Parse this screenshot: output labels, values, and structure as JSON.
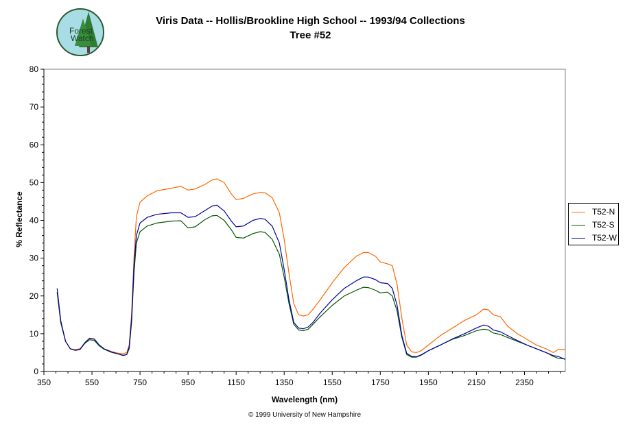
{
  "header": {
    "title_line1": "Viris Data -- Hollis/Brookline High School -- 1993/94 Collections",
    "title_line2": "Tree #52"
  },
  "logo": {
    "text_line1": "Forest",
    "text_line2": "Watch"
  },
  "footer": {
    "copyright": "© 1999 University of New Hampshire"
  },
  "chart_data": {
    "type": "line",
    "title": "Viris Data -- Hollis/Brookline High School -- 1993/94 Collections\nTree #52",
    "xlabel": "Wavelength (nm)",
    "ylabel": "% Reflectance",
    "xlim": [
      350,
      2520
    ],
    "ylim": [
      0,
      80
    ],
    "xticks": [
      350,
      550,
      750,
      950,
      1150,
      1350,
      1550,
      1750,
      1950,
      2150,
      2350
    ],
    "yticks": [
      0,
      10,
      20,
      30,
      40,
      50,
      60,
      70,
      80
    ],
    "grid": false,
    "legend_position": "right",
    "series": [
      {
        "name": "T52-N",
        "color": "#ff6600",
        "points": [
          [
            405,
            21
          ],
          [
            420,
            13
          ],
          [
            440,
            8
          ],
          [
            460,
            6
          ],
          [
            480,
            5.8
          ],
          [
            500,
            6
          ],
          [
            520,
            7.5
          ],
          [
            540,
            8.7
          ],
          [
            560,
            8.5
          ],
          [
            580,
            7
          ],
          [
            600,
            6
          ],
          [
            630,
            5.3
          ],
          [
            660,
            4.8
          ],
          [
            680,
            4.7
          ],
          [
            695,
            5
          ],
          [
            705,
            7
          ],
          [
            715,
            15
          ],
          [
            725,
            30
          ],
          [
            735,
            41
          ],
          [
            750,
            44.8
          ],
          [
            780,
            46.5
          ],
          [
            820,
            47.8
          ],
          [
            880,
            48.5
          ],
          [
            920,
            49
          ],
          [
            950,
            48
          ],
          [
            980,
            48.3
          ],
          [
            1020,
            49.5
          ],
          [
            1050,
            50.7
          ],
          [
            1070,
            51
          ],
          [
            1100,
            50
          ],
          [
            1130,
            47
          ],
          [
            1150,
            45.5
          ],
          [
            1180,
            45.8
          ],
          [
            1220,
            47
          ],
          [
            1250,
            47.4
          ],
          [
            1270,
            47.3
          ],
          [
            1300,
            46
          ],
          [
            1330,
            42
          ],
          [
            1350,
            35
          ],
          [
            1370,
            26
          ],
          [
            1390,
            18
          ],
          [
            1410,
            15
          ],
          [
            1430,
            14.7
          ],
          [
            1450,
            15
          ],
          [
            1470,
            16.5
          ],
          [
            1500,
            19
          ],
          [
            1550,
            23.5
          ],
          [
            1600,
            27.5
          ],
          [
            1650,
            30.5
          ],
          [
            1680,
            31.5
          ],
          [
            1700,
            31.5
          ],
          [
            1730,
            30.5
          ],
          [
            1750,
            29
          ],
          [
            1780,
            28.5
          ],
          [
            1800,
            28
          ],
          [
            1820,
            23
          ],
          [
            1840,
            14
          ],
          [
            1860,
            7
          ],
          [
            1880,
            5.2
          ],
          [
            1900,
            5
          ],
          [
            1920,
            5.5
          ],
          [
            1950,
            7
          ],
          [
            2000,
            9.5
          ],
          [
            2050,
            11.5
          ],
          [
            2100,
            13.5
          ],
          [
            2150,
            15
          ],
          [
            2180,
            16.5
          ],
          [
            2200,
            16.3
          ],
          [
            2220,
            15
          ],
          [
            2250,
            14.5
          ],
          [
            2280,
            12
          ],
          [
            2320,
            10
          ],
          [
            2360,
            8.5
          ],
          [
            2400,
            7
          ],
          [
            2440,
            6
          ],
          [
            2470,
            5
          ],
          [
            2490,
            5.8
          ],
          [
            2520,
            5.8
          ]
        ]
      },
      {
        "name": "T52-S",
        "color": "#005500",
        "points": [
          [
            405,
            21
          ],
          [
            420,
            13
          ],
          [
            440,
            8
          ],
          [
            460,
            6
          ],
          [
            480,
            5.6
          ],
          [
            500,
            5.8
          ],
          [
            520,
            7.4
          ],
          [
            540,
            8.4
          ],
          [
            560,
            8.2
          ],
          [
            580,
            6.8
          ],
          [
            600,
            5.9
          ],
          [
            630,
            5.1
          ],
          [
            660,
            4.6
          ],
          [
            680,
            4.3
          ],
          [
            695,
            4.5
          ],
          [
            705,
            6
          ],
          [
            715,
            13
          ],
          [
            725,
            26
          ],
          [
            735,
            34
          ],
          [
            750,
            37
          ],
          [
            780,
            38.5
          ],
          [
            820,
            39.3
          ],
          [
            880,
            39.8
          ],
          [
            920,
            39.9
          ],
          [
            950,
            38
          ],
          [
            980,
            38.3
          ],
          [
            1020,
            40.2
          ],
          [
            1050,
            41.2
          ],
          [
            1070,
            41.3
          ],
          [
            1100,
            40
          ],
          [
            1130,
            37.5
          ],
          [
            1150,
            35.5
          ],
          [
            1180,
            35.3
          ],
          [
            1220,
            36.5
          ],
          [
            1250,
            37
          ],
          [
            1270,
            36.8
          ],
          [
            1300,
            35
          ],
          [
            1330,
            31
          ],
          [
            1350,
            25
          ],
          [
            1370,
            18
          ],
          [
            1390,
            12.5
          ],
          [
            1410,
            11
          ],
          [
            1430,
            10.8
          ],
          [
            1450,
            11.2
          ],
          [
            1470,
            12.5
          ],
          [
            1500,
            14.5
          ],
          [
            1550,
            17.5
          ],
          [
            1600,
            20
          ],
          [
            1650,
            21.5
          ],
          [
            1680,
            22.3
          ],
          [
            1700,
            22.2
          ],
          [
            1730,
            21.5
          ],
          [
            1750,
            20.8
          ],
          [
            1780,
            21
          ],
          [
            1800,
            20
          ],
          [
            1820,
            16
          ],
          [
            1840,
            9
          ],
          [
            1860,
            4.5
          ],
          [
            1880,
            3.8
          ],
          [
            1900,
            3.8
          ],
          [
            1920,
            4.3
          ],
          [
            1950,
            5.5
          ],
          [
            2000,
            7
          ],
          [
            2050,
            8.5
          ],
          [
            2100,
            9.5
          ],
          [
            2150,
            10.8
          ],
          [
            2180,
            11.2
          ],
          [
            2200,
            11
          ],
          [
            2220,
            10.2
          ],
          [
            2250,
            9.8
          ],
          [
            2280,
            9
          ],
          [
            2320,
            8
          ],
          [
            2360,
            7
          ],
          [
            2400,
            6
          ],
          [
            2440,
            5
          ],
          [
            2470,
            4
          ],
          [
            2490,
            3.5
          ],
          [
            2520,
            3.3
          ]
        ]
      },
      {
        "name": "T52-W",
        "color": "#000099",
        "points": [
          [
            405,
            22
          ],
          [
            420,
            13.5
          ],
          [
            440,
            8
          ],
          [
            460,
            6
          ],
          [
            480,
            5.6
          ],
          [
            500,
            5.8
          ],
          [
            520,
            7.6
          ],
          [
            540,
            8.8
          ],
          [
            560,
            8.6
          ],
          [
            580,
            7
          ],
          [
            600,
            6
          ],
          [
            630,
            5.2
          ],
          [
            660,
            4.6
          ],
          [
            680,
            4.2
          ],
          [
            695,
            4.5
          ],
          [
            705,
            6.5
          ],
          [
            715,
            14
          ],
          [
            725,
            28
          ],
          [
            735,
            36
          ],
          [
            750,
            39.3
          ],
          [
            780,
            40.8
          ],
          [
            820,
            41.6
          ],
          [
            880,
            42
          ],
          [
            920,
            42
          ],
          [
            950,
            40.8
          ],
          [
            980,
            41
          ],
          [
            1020,
            42.6
          ],
          [
            1050,
            43.8
          ],
          [
            1070,
            44
          ],
          [
            1100,
            42.5
          ],
          [
            1130,
            39.8
          ],
          [
            1150,
            38.3
          ],
          [
            1180,
            38.5
          ],
          [
            1220,
            40
          ],
          [
            1250,
            40.5
          ],
          [
            1270,
            40.3
          ],
          [
            1300,
            38.5
          ],
          [
            1330,
            34
          ],
          [
            1350,
            27
          ],
          [
            1370,
            19
          ],
          [
            1390,
            13
          ],
          [
            1410,
            11.5
          ],
          [
            1430,
            11.3
          ],
          [
            1450,
            11.8
          ],
          [
            1470,
            13
          ],
          [
            1500,
            15.5
          ],
          [
            1550,
            19
          ],
          [
            1600,
            22
          ],
          [
            1650,
            24
          ],
          [
            1680,
            25
          ],
          [
            1700,
            25
          ],
          [
            1730,
            24.3
          ],
          [
            1750,
            23.5
          ],
          [
            1780,
            23.3
          ],
          [
            1800,
            22
          ],
          [
            1820,
            17.5
          ],
          [
            1840,
            9.5
          ],
          [
            1860,
            4.8
          ],
          [
            1880,
            4
          ],
          [
            1900,
            3.9
          ],
          [
            1920,
            4.4
          ],
          [
            1950,
            5.5
          ],
          [
            2000,
            7
          ],
          [
            2050,
            8.6
          ],
          [
            2100,
            10
          ],
          [
            2150,
            11.5
          ],
          [
            2180,
            12.3
          ],
          [
            2200,
            12
          ],
          [
            2220,
            11
          ],
          [
            2250,
            10.5
          ],
          [
            2280,
            9.5
          ],
          [
            2320,
            8.2
          ],
          [
            2360,
            7
          ],
          [
            2400,
            6
          ],
          [
            2440,
            5
          ],
          [
            2470,
            4.2
          ],
          [
            2490,
            4
          ],
          [
            2520,
            3.2
          ]
        ]
      }
    ]
  }
}
